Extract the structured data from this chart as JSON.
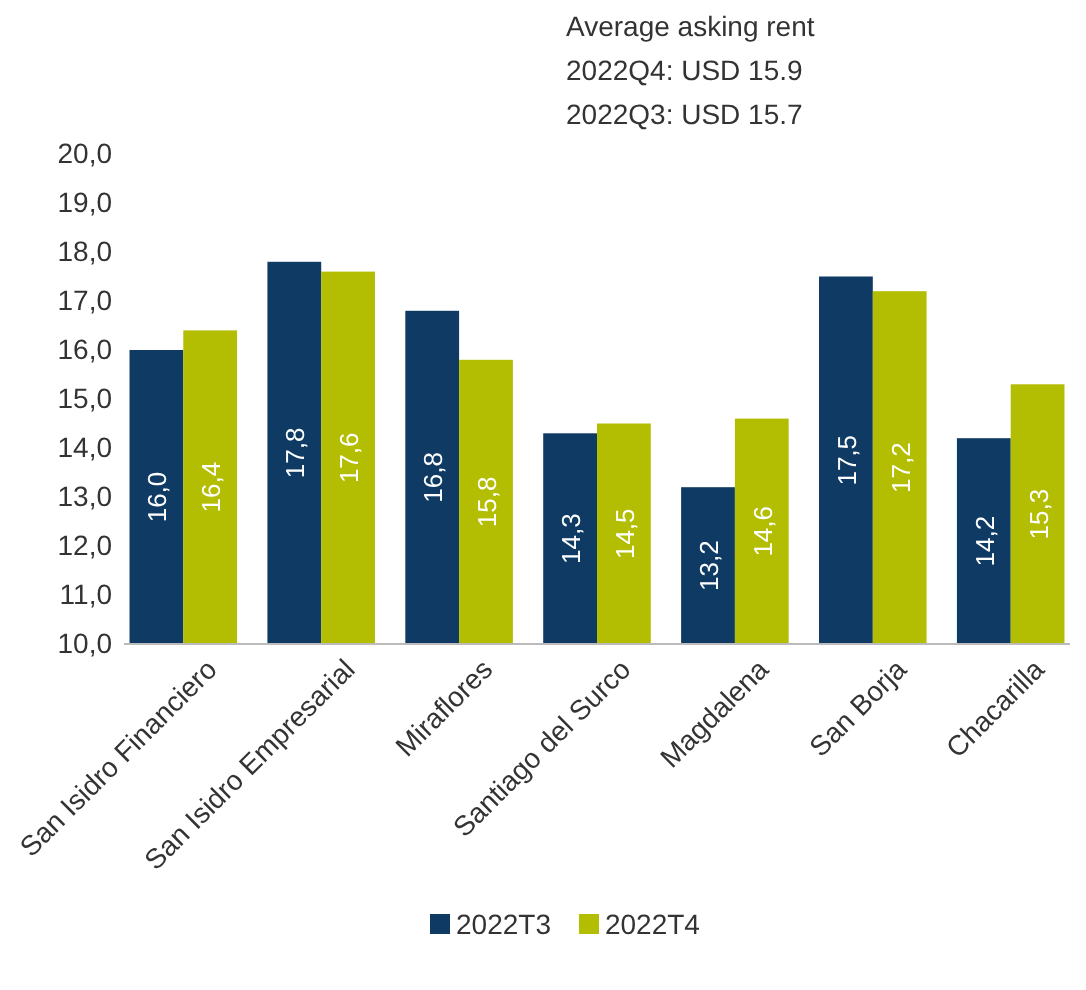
{
  "chart_data": {
    "type": "bar",
    "title": "Average asking rent",
    "annotations": [
      "2022Q4: USD 15.9",
      "2022Q3: USD 15.7"
    ],
    "categories": [
      "San Isidro Financiero",
      "San Isidro Empresarial",
      "Miraflores",
      "Santiago del Surco",
      "Magdalena",
      "San Borja",
      "Chacarilla"
    ],
    "series": [
      {
        "name": "2022T3",
        "color": "#0e3a63",
        "values": [
          16.0,
          17.8,
          16.8,
          14.3,
          13.2,
          17.5,
          14.2
        ],
        "value_labels": [
          "16,0",
          "17,8",
          "16,8",
          "14,3",
          "13,2",
          "17,5",
          "14,2"
        ]
      },
      {
        "name": "2022T4",
        "color": "#b3bd02",
        "values": [
          16.4,
          17.6,
          15.8,
          14.5,
          14.6,
          17.2,
          15.3
        ],
        "value_labels": [
          "16,4",
          "17,6",
          "15,8",
          "14,5",
          "14,6",
          "17,2",
          "15,3"
        ]
      }
    ],
    "ylim": [
      10,
      20
    ],
    "yticks": [
      {
        "value": 10,
        "label": "10,0"
      },
      {
        "value": 11,
        "label": "11,0"
      },
      {
        "value": 12,
        "label": "12,0"
      },
      {
        "value": 13,
        "label": "13,0"
      },
      {
        "value": 14,
        "label": "14,0"
      },
      {
        "value": 15,
        "label": "15,0"
      },
      {
        "value": 16,
        "label": "16,0"
      },
      {
        "value": 17,
        "label": "17,0"
      },
      {
        "value": 18,
        "label": "18,0"
      },
      {
        "value": 19,
        "label": "19,0"
      },
      {
        "value": 20,
        "label": "20,0"
      }
    ],
    "grid": false,
    "legend": "bottom"
  }
}
